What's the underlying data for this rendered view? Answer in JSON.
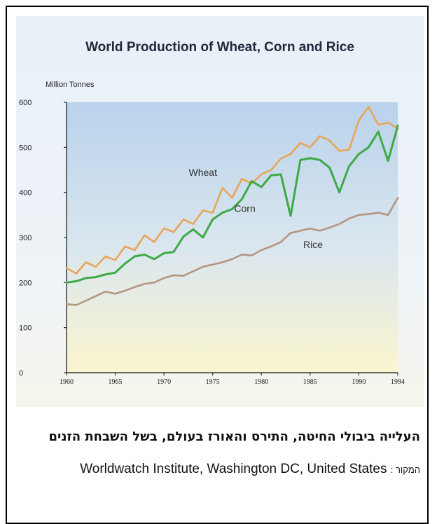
{
  "caption": {
    "title": "העלייה ביבולי החיטה, התירס והאורז בעולם, בשל השבחת הזנים",
    "source_label": "המקור :",
    "source_text": "Worldwatch Institute, Washington DC, United States"
  },
  "colors": {
    "wheat": "#e8a558",
    "corn": "#3daa47",
    "rice": "#b59583",
    "axis": "#111111",
    "title": "#1d2a3a"
  },
  "chart_data": {
    "type": "line",
    "title": "World Production of Wheat, Corn and Rice",
    "ylabel": "Million Tonnes",
    "xlabel": "",
    "ylim": [
      0,
      600
    ],
    "xlim": [
      1960,
      1994
    ],
    "x_ticks": [
      1960,
      1965,
      1970,
      1975,
      1980,
      1985,
      1990,
      1994
    ],
    "y_ticks": [
      0,
      100,
      200,
      300,
      400,
      500,
      600
    ],
    "grid": false,
    "legend": "inline labels",
    "x": [
      1960,
      1961,
      1962,
      1963,
      1964,
      1965,
      1966,
      1967,
      1968,
      1969,
      1970,
      1971,
      1972,
      1973,
      1974,
      1975,
      1976,
      1977,
      1978,
      1979,
      1980,
      1981,
      1982,
      1983,
      1984,
      1985,
      1986,
      1987,
      1988,
      1989,
      1990,
      1991,
      1992,
      1993,
      1994
    ],
    "series": [
      {
        "name": "Wheat",
        "values": [
          232,
          220,
          245,
          235,
          258,
          250,
          280,
          272,
          305,
          290,
          320,
          312,
          340,
          330,
          360,
          355,
          410,
          388,
          430,
          420,
          440,
          450,
          475,
          485,
          510,
          500,
          525,
          515,
          492,
          495,
          560,
          590,
          550,
          555,
          542
        ]
      },
      {
        "name": "Corn",
        "values": [
          200,
          203,
          210,
          212,
          218,
          222,
          242,
          258,
          262,
          252,
          265,
          268,
          302,
          318,
          300,
          340,
          355,
          363,
          385,
          425,
          412,
          438,
          440,
          348,
          472,
          476,
          472,
          455,
          400,
          458,
          485,
          500,
          535,
          470,
          548
        ]
      },
      {
        "name": "Rice",
        "values": [
          152,
          150,
          160,
          170,
          180,
          175,
          182,
          190,
          197,
          200,
          210,
          216,
          215,
          225,
          235,
          240,
          245,
          252,
          262,
          260,
          272,
          280,
          290,
          310,
          315,
          320,
          315,
          322,
          330,
          342,
          350,
          352,
          355,
          350,
          388
        ]
      }
    ]
  }
}
